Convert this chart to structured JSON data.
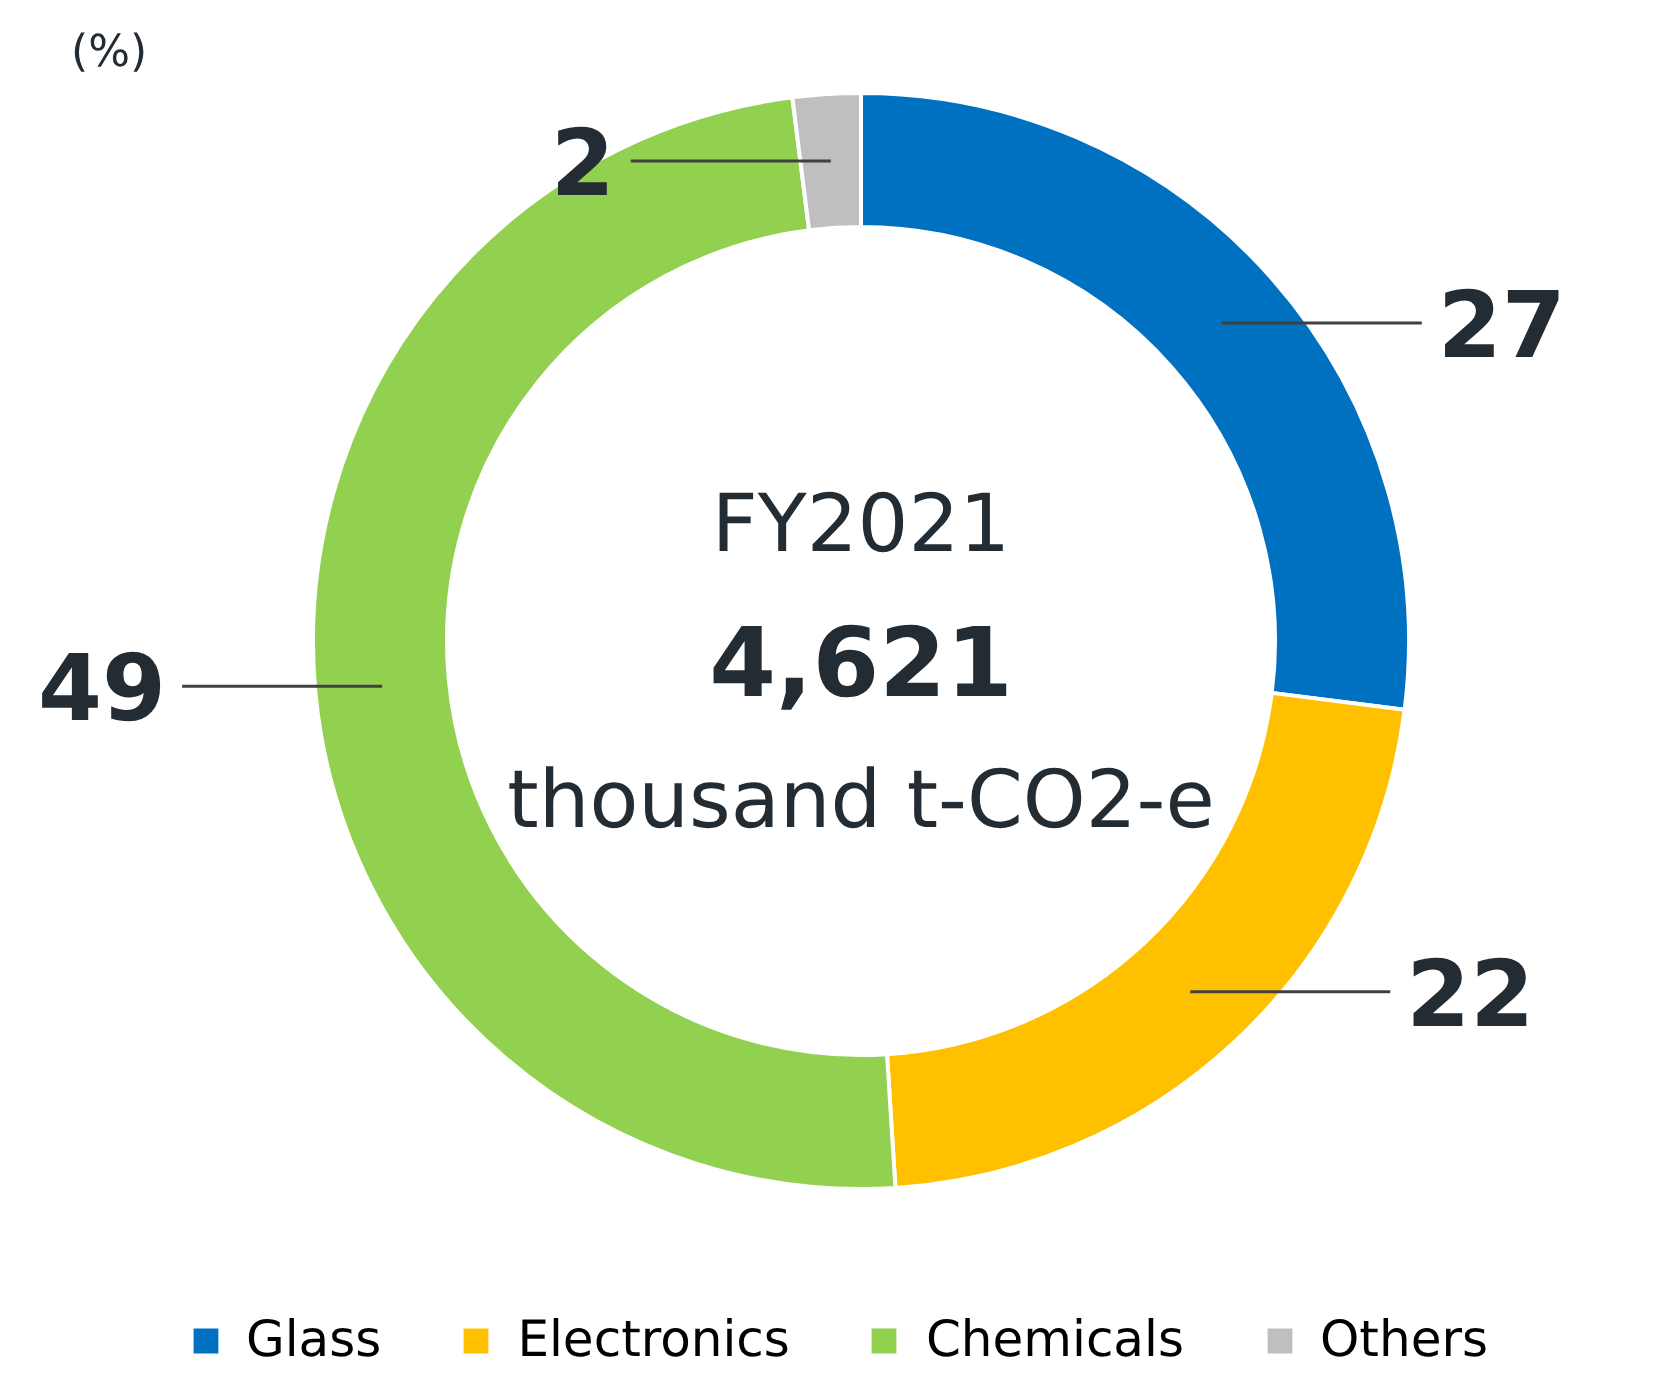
{
  "chart_data": {
    "type": "donut",
    "title": "FY2021",
    "subtitle": "4,621",
    "annotations": [
      "thousand t-CO2-e",
      "(%)"
    ],
    "categories": [
      "Glass",
      "Electronics",
      "Chemicals",
      "Others"
    ],
    "values": [
      27,
      22,
      49,
      2
    ],
    "colors": [
      "#0070c0",
      "#ffc000",
      "#92d050",
      "#bfbfbf"
    ],
    "data_labels": true,
    "legend": "bottom"
  }
}
